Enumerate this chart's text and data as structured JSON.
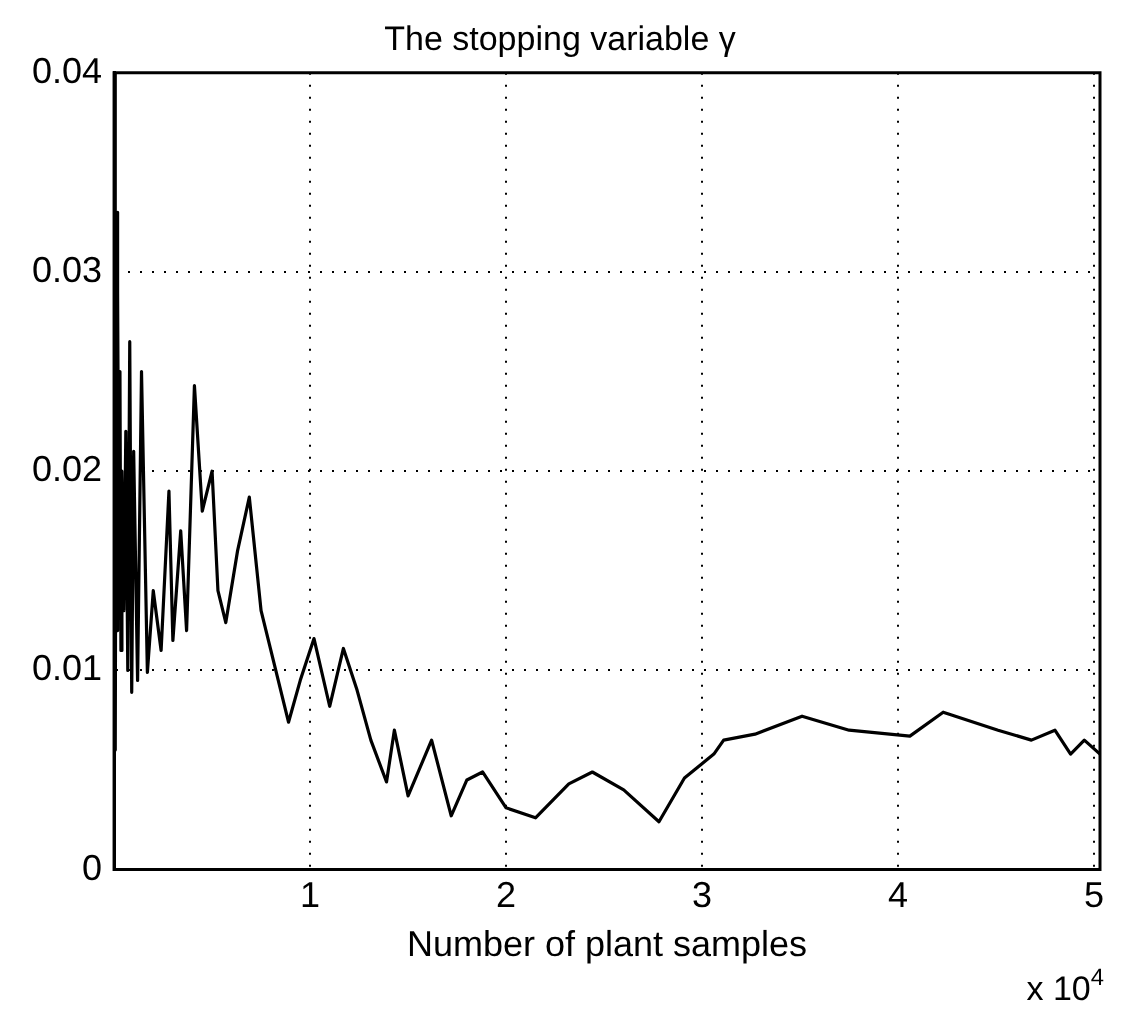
{
  "chart_data": {
    "type": "line",
    "title": "The stopping variable γ",
    "xlabel": "Number of plant samples",
    "annotations": [
      "x 10$^{4}$"
    ],
    "x": [
      0,
      0.003,
      0.009,
      0.012,
      0.016,
      0.02,
      0.025,
      0.03,
      0.035,
      0.04,
      0.05,
      0.06,
      0.07,
      0.08,
      0.09,
      0.1,
      0.12,
      0.14,
      0.17,
      0.2,
      0.24,
      0.28,
      0.3,
      0.34,
      0.37,
      0.41,
      0.45,
      0.5,
      0.53,
      0.57,
      0.63,
      0.69,
      0.75,
      0.8,
      0.89,
      0.95,
      1.02,
      1.1,
      1.17,
      1.24,
      1.31,
      1.39,
      1.43,
      1.5,
      1.62,
      1.72,
      1.8,
      1.88,
      2.0,
      2.15,
      2.32,
      2.44,
      2.6,
      2.78,
      2.91,
      3.06,
      3.11,
      3.27,
      3.51,
      3.75,
      4.06,
      4.23,
      4.51,
      4.68,
      4.8,
      4.88,
      4.95,
      5.03
    ],
    "series": [
      {
        "color": "#000000",
        "values": [
          0.035,
          0.04,
          0.006,
          0.033,
          0.012,
          0.029,
          0.015,
          0.025,
          0.011,
          0.02,
          0.013,
          0.022,
          0.01,
          0.0265,
          0.0089,
          0.021,
          0.0095,
          0.025,
          0.0099,
          0.014,
          0.011,
          0.019,
          0.0115,
          0.017,
          0.012,
          0.0243,
          0.018,
          0.02,
          0.014,
          0.0124,
          0.016,
          0.0187,
          0.013,
          0.011,
          0.0074,
          0.0095,
          0.0116,
          0.0082,
          0.0111,
          0.009,
          0.0065,
          0.0044,
          0.007,
          0.0037,
          0.0065,
          0.0027,
          0.0045,
          0.0049,
          0.0031,
          0.0026,
          0.0043,
          0.0049,
          0.004,
          0.0024,
          0.0046,
          0.0058,
          0.0065,
          0.0068,
          0.0077,
          0.007,
          0.0067,
          0.0079,
          0.007,
          0.0065,
          0.007,
          0.0058,
          0.0065,
          0.0058
        ]
      }
    ],
    "xlim": [
      0,
      5.03
    ],
    "xticks": [
      1,
      2,
      3,
      4,
      5
    ],
    "ylim": [
      0,
      0.04
    ],
    "yticks": [
      0,
      0.01,
      0.02,
      0.03,
      0.04
    ],
    "grid": true,
    "legend": false,
    "line_style": "solid",
    "marker": "none"
  }
}
